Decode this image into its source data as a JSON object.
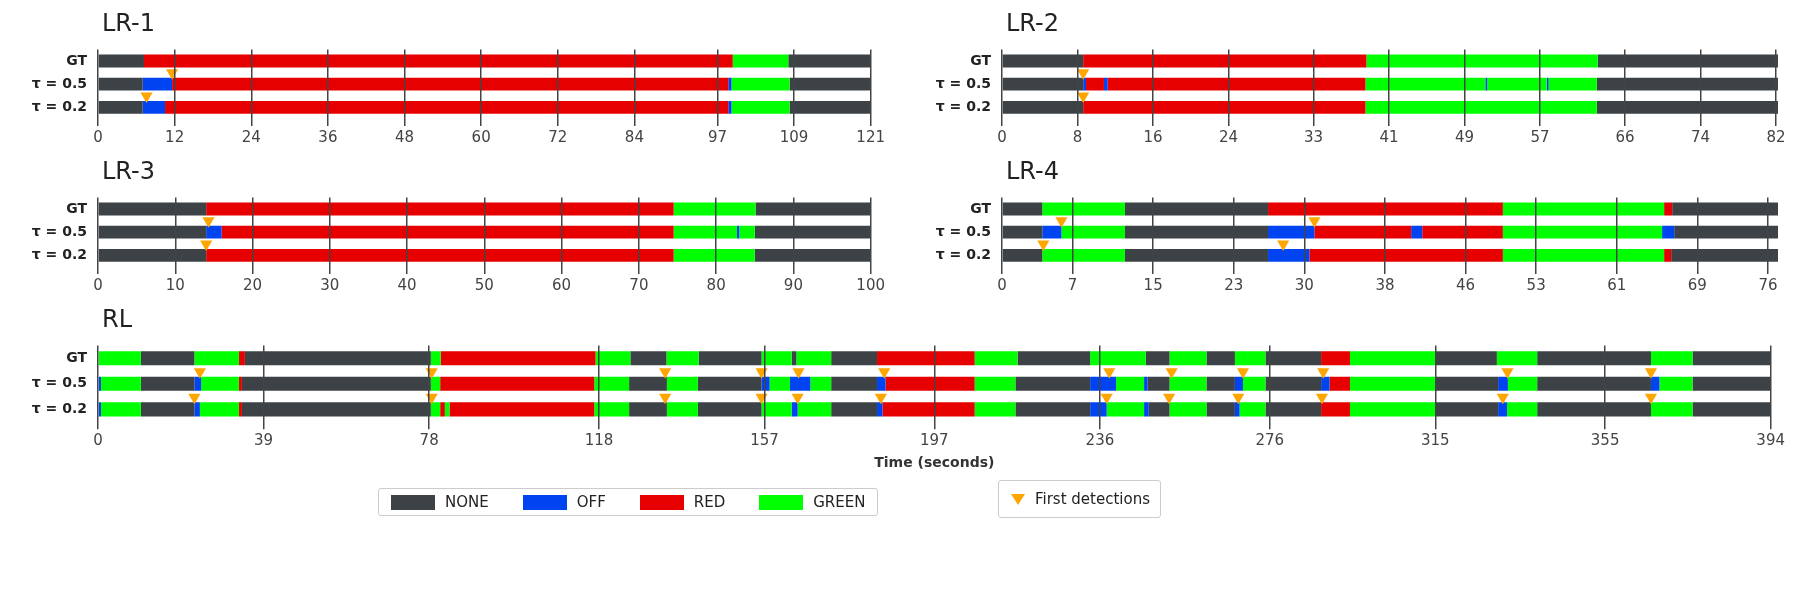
{
  "chart_data": [
    {
      "type": "bar",
      "orientation": "horizontal",
      "stacked": true,
      "title": "LR-1",
      "categories": [
        "GT",
        "τ = 0.5",
        "τ = 0.2"
      ],
      "xlim": [
        0,
        121
      ],
      "xticks": [
        0,
        12,
        24,
        36,
        48,
        60,
        72,
        84,
        97,
        109,
        121
      ],
      "grid": "x",
      "series": [
        {
          "values": [
            7.2,
            7.0,
            7.0
          ],
          "colors": [
            "#3d4246",
            "#3d4246",
            "#3d4246"
          ]
        },
        {
          "values": [
            92.2,
            4.6,
            3.5
          ],
          "colors": [
            "#e60000",
            "#0043f0",
            "#0043f0"
          ]
        },
        {
          "values": [
            8.7,
            87.1,
            88.2
          ],
          "colors": [
            "#00ff00",
            "#e60000",
            "#e60000"
          ]
        },
        {
          "values": [
            12.9,
            0.5,
            0.5
          ],
          "colors": [
            "#3d4246",
            "#0043f0",
            "#0043f0"
          ]
        },
        {
          "values": [
            null,
            9.1,
            9.1
          ],
          "colors": [
            null,
            "#00ff00",
            "#00ff00"
          ]
        },
        {
          "values": [
            null,
            12.7,
            12.7
          ],
          "colors": [
            null,
            "#3d4246",
            "#3d4246"
          ]
        },
        {
          "type": "scatter",
          "color": "#ffa500",
          "marker": "triangle",
          "x": [
            "τ = 0.5",
            "τ = 0.2"
          ],
          "values": [
            11.6,
            7.6
          ]
        }
      ]
    },
    {
      "type": "bar",
      "orientation": "horizontal",
      "stacked": true,
      "title": "LR-2",
      "categories": [
        "GT",
        "τ = 0.5",
        "τ = 0.2"
      ],
      "xlim": [
        0,
        82.2
      ],
      "xticks": [
        0,
        8,
        16,
        24,
        33,
        41,
        49,
        57,
        66,
        74,
        82
      ],
      "grid": "x",
      "series": [
        {
          "values": [
            8.6,
            8.6,
            8.6
          ],
          "colors": [
            "#3d4246",
            "#3d4246",
            "#3d4246"
          ]
        },
        {
          "values": [
            30.0,
            0.3,
            29.9
          ],
          "colors": [
            "#e60000",
            "#0043f0",
            "#e60000"
          ]
        },
        {
          "values": [
            24.5,
            1.9,
            24.5
          ],
          "colors": [
            "#00ff00",
            "#e60000",
            "#00ff00"
          ]
        },
        {
          "values": [
            19.1,
            0.4,
            19.2
          ],
          "colors": [
            "#3d4246",
            "#0043f0",
            "#3d4246"
          ]
        },
        {
          "values": [
            null,
            27.3,
            null
          ],
          "colors": [
            null,
            "#e60000",
            null
          ]
        },
        {
          "values": [
            null,
            12.7,
            null
          ],
          "colors": [
            null,
            "#00ff00",
            null
          ]
        },
        {
          "values": [
            null,
            0.2,
            null
          ],
          "colors": [
            null,
            "#0043f0",
            null
          ]
        },
        {
          "values": [
            null,
            6.3,
            null
          ],
          "colors": [
            null,
            "#00ff00",
            null
          ]
        },
        {
          "values": [
            null,
            0.2,
            null
          ],
          "colors": [
            null,
            "#0043f0",
            null
          ]
        },
        {
          "values": [
            null,
            5.1,
            null
          ],
          "colors": [
            null,
            "#00ff00",
            null
          ]
        },
        {
          "values": [
            null,
            19.2,
            null
          ],
          "colors": [
            null,
            "#3d4246",
            null
          ]
        },
        {
          "type": "scatter",
          "color": "#ffa500",
          "marker": "triangle",
          "x": [
            "τ = 0.5",
            "τ = 0.2"
          ],
          "values": [
            8.6,
            8.6
          ]
        }
      ]
    },
    {
      "type": "bar",
      "orientation": "horizontal",
      "stacked": true,
      "title": "LR-3",
      "categories": [
        "GT",
        "τ = 0.5",
        "τ = 0.2"
      ],
      "xlim": [
        0,
        100
      ],
      "xticks": [
        0,
        10,
        20,
        30,
        40,
        50,
        60,
        70,
        80,
        90,
        100
      ],
      "grid": "x",
      "series": [
        {
          "values": [
            14.0,
            14.0,
            14.0
          ],
          "colors": [
            "#3d4246",
            "#3d4246",
            "#3d4246"
          ]
        },
        {
          "values": [
            60.5,
            2.0,
            60.5
          ],
          "colors": [
            "#e60000",
            "#0043f0",
            "#e60000"
          ]
        },
        {
          "values": [
            10.6,
            58.5,
            10.5
          ],
          "colors": [
            "#00ff00",
            "#e60000",
            "#00ff00"
          ]
        },
        {
          "values": [
            14.9,
            8.2,
            15.0
          ],
          "colors": [
            "#3d4246",
            "#00ff00",
            "#3d4246"
          ]
        },
        {
          "values": [
            null,
            0.3,
            null
          ],
          "colors": [
            null,
            "#0043f0",
            null
          ]
        },
        {
          "values": [
            null,
            2.0,
            null
          ],
          "colors": [
            null,
            "#00ff00",
            null
          ]
        },
        {
          "values": [
            null,
            15.0,
            null
          ],
          "colors": [
            null,
            "#3d4246",
            null
          ]
        },
        {
          "type": "scatter",
          "color": "#ffa500",
          "marker": "triangle",
          "x": [
            "τ = 0.5",
            "τ = 0.2"
          ],
          "values": [
            14.3,
            14.0
          ]
        }
      ]
    },
    {
      "type": "bar",
      "orientation": "horizontal",
      "stacked": true,
      "title": "LR-4",
      "categories": [
        "GT",
        "τ = 0.5",
        "τ = 0.2"
      ],
      "xlim": [
        0,
        77
      ],
      "xticks": [
        0,
        7,
        15,
        23,
        30,
        38,
        46,
        53,
        61,
        69,
        76
      ],
      "grid": "x",
      "series": [
        {
          "values": [
            4.0,
            4.0,
            4.0
          ],
          "colors": [
            "#3d4246",
            "#3d4246",
            "#3d4246"
          ]
        },
        {
          "values": [
            8.2,
            1.9,
            8.2
          ],
          "colors": [
            "#00ff00",
            "#0043f0",
            "#00ff00"
          ]
        },
        {
          "values": [
            14.2,
            6.3,
            14.2
          ],
          "colors": [
            "#3d4246",
            "#00ff00",
            "#3d4246"
          ]
        },
        {
          "values": [
            23.3,
            14.2,
            4.1
          ],
          "colors": [
            "#e60000",
            "#3d4246",
            "#0043f0"
          ]
        },
        {
          "values": [
            16.0,
            4.6,
            19.2
          ],
          "colors": [
            "#00ff00",
            "#0043f0",
            "#e60000"
          ]
        },
        {
          "values": [
            0.8,
            9.6,
            16.0
          ],
          "colors": [
            "#e60000",
            "#e60000",
            "#00ff00"
          ]
        },
        {
          "values": [
            10.5,
            1.1,
            0.7
          ],
          "colors": [
            "#3d4246",
            "#0043f0",
            "#e60000"
          ]
        },
        {
          "values": [
            null,
            8.0,
            10.6
          ],
          "colors": [
            null,
            "#e60000",
            "#3d4246"
          ]
        },
        {
          "values": [
            null,
            15.8,
            null
          ],
          "colors": [
            null,
            "#00ff00",
            null
          ]
        },
        {
          "values": [
            null,
            1.2,
            null
          ],
          "colors": [
            null,
            "#0043f0",
            null
          ]
        },
        {
          "values": [
            null,
            10.3,
            null
          ],
          "colors": [
            null,
            "#3d4246",
            null
          ]
        },
        {
          "type": "scatter",
          "color": "#ffa500",
          "marker": "triangle",
          "x": [
            "τ = 0.5",
            "τ = 0.5",
            "τ = 0.2",
            "τ = 0.2"
          ],
          "values": [
            5.9,
            31.0,
            4.1,
            27.9
          ]
        }
      ]
    },
    {
      "type": "bar",
      "orientation": "horizontal",
      "stacked": true,
      "title": "RL",
      "xlabel": "Time (seconds)",
      "legend": "bottom",
      "categories": [
        "GT",
        "τ = 0.5",
        "τ = 0.2"
      ],
      "xlim": [
        0,
        394
      ],
      "xticks": [
        0,
        39,
        78,
        118,
        157,
        197,
        236,
        276,
        315,
        355,
        394
      ],
      "grid": "x",
      "series": [
        {
          "values": [
            10.1,
            0.7,
            0.7
          ],
          "colors": [
            "#00ff00",
            "#0043f0",
            "#0043f0"
          ]
        },
        {
          "values": [
            12.6,
            9.4,
            9.4
          ],
          "colors": [
            "#3d4246",
            "#00ff00",
            "#00ff00"
          ]
        },
        {
          "values": [
            10.5,
            12.6,
            12.6
          ],
          "colors": [
            "#00ff00",
            "#3d4246",
            "#3d4246"
          ]
        },
        {
          "values": [
            1.4,
            1.6,
            1.3
          ],
          "colors": [
            "#e60000",
            "#0043f0",
            "#0043f0"
          ]
        },
        {
          "values": [
            43.8,
            8.9,
            9.2
          ],
          "colors": [
            "#3d4246",
            "#00ff00",
            "#00ff00"
          ]
        },
        {
          "values": [
            2.3,
            0.7,
            0.7
          ],
          "colors": [
            "#00ff00",
            "#e60000",
            "#e60000"
          ]
        },
        {
          "values": [
            36.5,
            44.5,
            44.5
          ],
          "colors": [
            "#e60000",
            "#3d4246",
            "#3d4246"
          ]
        },
        {
          "values": [
            8.2,
            2.2,
            2.2
          ],
          "colors": [
            "#00ff00",
            "#00ff00",
            "#00ff00"
          ]
        },
        {
          "values": [
            8.5,
            36.3,
            1.1
          ],
          "colors": [
            "#3d4246",
            "#e60000",
            "#e60000"
          ]
        },
        {
          "values": [
            7.6,
            8.2,
            1.1
          ],
          "colors": [
            "#00ff00",
            "#00ff00",
            "#00ff00"
          ]
        },
        {
          "values": [
            14.8,
            8.9,
            34.1
          ],
          "colors": [
            "#3d4246",
            "#3d4246",
            "#e60000"
          ]
        },
        {
          "values": [
            7.1,
            7.3,
            8.2
          ],
          "colors": [
            "#00ff00",
            "#00ff00",
            "#00ff00"
          ]
        },
        {
          "values": [
            1.1,
            15.0,
            8.9
          ],
          "colors": [
            "#3d4246",
            "#3d4246",
            "#3d4246"
          ]
        },
        {
          "values": [
            8.2,
            1.9,
            7.3
          ],
          "colors": [
            "#00ff00",
            "#0043f0",
            "#00ff00"
          ]
        },
        {
          "values": [
            10.8,
            4.8,
            15.0
          ],
          "colors": [
            "#3d4246",
            "#00ff00",
            "#3d4246"
          ]
        },
        {
          "values": [
            23.0,
            4.8,
            7.1
          ],
          "colors": [
            "#e60000",
            "#0043f0",
            "#00ff00"
          ]
        },
        {
          "values": [
            10.1,
            4.9,
            1.4
          ],
          "colors": [
            "#00ff00",
            "#00ff00",
            "#0043f0"
          ]
        },
        {
          "values": [
            17.1,
            10.8,
            7.9
          ],
          "colors": [
            "#3d4246",
            "#3d4246",
            "#00ff00"
          ]
        },
        {
          "values": [
            13.1,
            2.0,
            10.8
          ],
          "colors": [
            "#00ff00",
            "#0043f0",
            "#3d4246"
          ]
        },
        {
          "values": [
            5.6,
            21.0,
            1.3
          ],
          "colors": [
            "#3d4246",
            "#e60000",
            "#0043f0"
          ]
        },
        {
          "values": [
            8.7,
            9.6,
            21.7
          ],
          "colors": [
            "#00ff00",
            "#00ff00",
            "#e60000"
          ]
        },
        {
          "values": [
            6.7,
            17.6,
            9.6
          ],
          "colors": [
            "#3d4246",
            "#3d4246",
            "#00ff00"
          ]
        },
        {
          "values": [
            7.2,
            6.1,
            17.6
          ],
          "colors": [
            "#00ff00",
            "#0043f0",
            "#3d4246"
          ]
        },
        {
          "values": [
            13.1,
            6.6,
            3.9
          ],
          "colors": [
            "#3d4246",
            "#00ff00",
            "#0043f0"
          ]
        },
        {
          "values": [
            6.8,
            0.8,
            8.8
          ],
          "colors": [
            "#e60000",
            "#0043f0",
            "#00ff00"
          ]
        },
        {
          "values": [
            20.2,
            5.2,
            1.1
          ],
          "colors": [
            "#00ff00",
            "#3d4246",
            "#0043f0"
          ]
        },
        {
          "values": [
            14.4,
            8.7,
            4.9
          ],
          "colors": [
            "#3d4246",
            "#00ff00",
            "#3d4246"
          ]
        },
        {
          "values": [
            9.5,
            6.7,
            8.7
          ],
          "colors": [
            "#00ff00",
            "#3d4246",
            "#00ff00"
          ]
        },
        {
          "values": [
            26.8,
            1.9,
            6.7
          ],
          "colors": [
            "#3d4246",
            "#0043f0",
            "#3d4246"
          ]
        },
        {
          "values": [
            9.8,
            5.3,
            1.1
          ],
          "colors": [
            "#00ff00",
            "#00ff00",
            "#0043f0"
          ]
        },
        {
          "values": [
            18.4,
            13.1,
            6.1
          ],
          "colors": [
            "#3d4246",
            "#3d4246",
            "#00ff00"
          ]
        },
        {
          "values": [
            null,
            2.0,
            13.1
          ],
          "colors": [
            null,
            "#0043f0",
            "#3d4246"
          ]
        },
        {
          "values": [
            null,
            4.8,
            6.8
          ],
          "colors": [
            null,
            "#e60000",
            "#e60000"
          ]
        },
        {
          "values": [
            null,
            20.2,
            20.2
          ],
          "colors": [
            null,
            "#00ff00",
            "#00ff00"
          ]
        },
        {
          "values": [
            null,
            14.7,
            14.7
          ],
          "colors": [
            null,
            "#3d4246",
            "#3d4246"
          ]
        },
        {
          "values": [
            null,
            2.3,
            2.1
          ],
          "colors": [
            null,
            "#0043f0",
            "#0043f0"
          ]
        },
        {
          "values": [
            null,
            6.9,
            7.1
          ],
          "colors": [
            null,
            "#00ff00",
            "#00ff00"
          ]
        },
        {
          "values": [
            null,
            26.8,
            26.8
          ],
          "colors": [
            null,
            "#3d4246",
            "#3d4246"
          ]
        },
        {
          "values": [
            null,
            2.0,
            9.8
          ],
          "colors": [
            null,
            "#0043f0",
            "#00ff00"
          ]
        },
        {
          "values": [
            null,
            7.8,
            18.4
          ],
          "colors": [
            null,
            "#00ff00",
            "#3d4246"
          ]
        },
        {
          "values": [
            null,
            18.4,
            null
          ],
          "colors": [
            null,
            "#3d4246",
            null
          ]
        },
        {
          "type": "scatter",
          "name": "First detections",
          "color": "#ffa500",
          "marker": "triangle",
          "x": [
            "τ = 0.5",
            "τ = 0.5",
            "τ = 0.5",
            "τ = 0.5",
            "τ = 0.5",
            "τ = 0.5",
            "τ = 0.5",
            "τ = 0.5",
            "τ = 0.5",
            "τ = 0.5",
            "τ = 0.5",
            "τ = 0.5",
            "τ = 0.2",
            "τ = 0.2",
            "τ = 0.2",
            "τ = 0.2",
            "τ = 0.2",
            "τ = 0.2",
            "τ = 0.2",
            "τ = 0.2",
            "τ = 0.2",
            "τ = 0.2",
            "τ = 0.2",
            "τ = 0.2"
          ],
          "values": [
            24.0,
            78.6,
            133.6,
            156.3,
            165.0,
            185.2,
            238.2,
            252.9,
            269.7,
            288.6,
            332.0,
            365.8,
            22.7,
            78.6,
            133.6,
            156.3,
            164.8,
            184.4,
            237.6,
            252.3,
            268.6,
            288.3,
            330.9,
            365.8
          ]
        }
      ]
    },
    {
      "type": "other",
      "categories": [
        "NONE",
        "OFF",
        "RED",
        "GREEN"
      ],
      "colors": [
        "#3d4246",
        "#0043f0",
        "#e60000",
        "#00ff00"
      ]
    }
  ]
}
